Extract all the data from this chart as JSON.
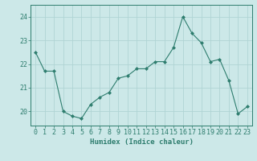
{
  "x": [
    0,
    1,
    2,
    3,
    4,
    5,
    6,
    7,
    8,
    9,
    10,
    11,
    12,
    13,
    14,
    15,
    16,
    17,
    18,
    19,
    20,
    21,
    22,
    23
  ],
  "y": [
    22.5,
    21.7,
    21.7,
    20.0,
    19.8,
    19.7,
    20.3,
    20.6,
    20.8,
    21.4,
    21.5,
    21.8,
    21.8,
    22.1,
    22.1,
    22.7,
    24.0,
    23.3,
    22.9,
    22.1,
    22.2,
    21.3,
    19.9,
    20.2
  ],
  "line_color": "#2e7d6e",
  "marker": "D",
  "marker_size": 2.0,
  "background_color": "#cce8e8",
  "grid_color": "#b0d4d4",
  "axis_color": "#2e7d6e",
  "xlabel": "Humidex (Indice chaleur)",
  "xlabel_fontsize": 6.5,
  "tick_fontsize": 6.0,
  "yticks": [
    20,
    21,
    22,
    23,
    24
  ],
  "ylim": [
    19.4,
    24.5
  ],
  "xlim": [
    -0.5,
    23.5
  ]
}
